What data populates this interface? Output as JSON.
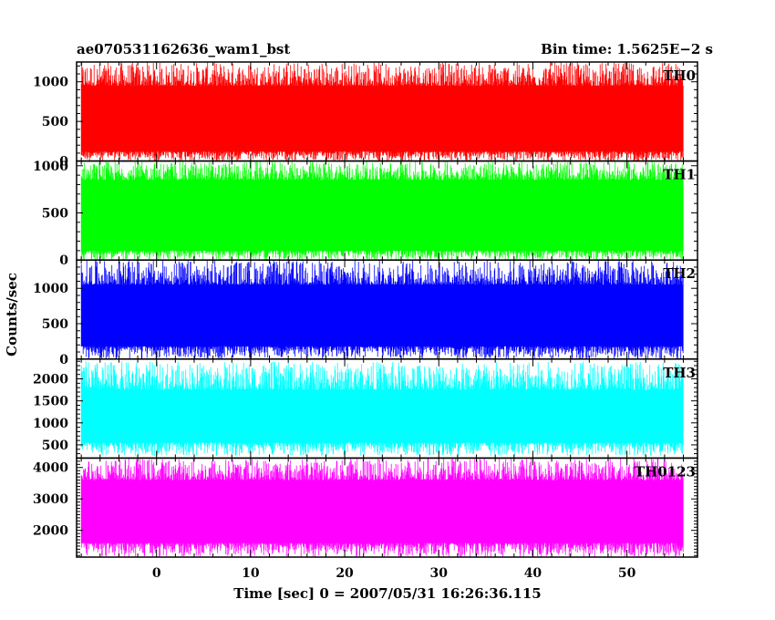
{
  "header": {
    "title": "ae070531162636_wam1_bst",
    "bin_time": "Bin time: 1.5625E−2 s"
  },
  "chart_data": {
    "type": "line",
    "title": "ae070531162636_wam1_bst",
    "subtitle": "Bin time: 1.5625E−2 s",
    "xlabel": "Time [sec] 0 = 2007/05/31 16:26:36.115",
    "ylabel": "Counts/sec",
    "xlim": [
      -8.5,
      57.5
    ],
    "x_range": [
      -8,
      56
    ],
    "x_ticks": [
      0,
      10,
      20,
      30,
      40,
      50
    ],
    "x_tick_labels": [
      "0",
      "10",
      "20",
      "30",
      "40",
      "50"
    ],
    "grid": false,
    "panels": [
      {
        "name": "TH0",
        "color": "#ff0000",
        "ylim": [
          0,
          1250
        ],
        "yticks": [
          0,
          500,
          1000
        ],
        "ytick_labels": [
          "0",
          "500",
          "1000"
        ],
        "low": 0,
        "base_low": 120,
        "base_high": 950,
        "high": 1250
      },
      {
        "name": "TH1",
        "color": "#00ff00",
        "ylim": [
          0,
          1050
        ],
        "yticks": [
          0,
          500,
          1000
        ],
        "ytick_labels": [
          "0",
          "500",
          "1000"
        ],
        "low": 0,
        "base_low": 100,
        "base_high": 850,
        "high": 1050
      },
      {
        "name": "TH2",
        "color": "#0000ff",
        "ylim": [
          0,
          1400
        ],
        "yticks": [
          0,
          500,
          1000
        ],
        "ytick_labels": [
          "0",
          "500",
          "1000"
        ],
        "low": 0,
        "base_low": 180,
        "base_high": 1050,
        "high": 1400
      },
      {
        "name": "TH3",
        "color": "#00ffff",
        "ylim": [
          200,
          2450
        ],
        "yticks": [
          500,
          1000,
          1500,
          2000
        ],
        "ytick_labels": [
          "500",
          "1000",
          "1500",
          "2000"
        ],
        "low": 250,
        "base_low": 550,
        "base_high": 1750,
        "high": 2400
      },
      {
        "name": "TH0123",
        "color": "#ff00ff",
        "ylim": [
          1150,
          4300
        ],
        "yticks": [
          2000,
          3000,
          4000
        ],
        "ytick_labels": [
          "2000",
          "3000",
          "4000"
        ],
        "low": 1150,
        "base_low": 1600,
        "base_high": 3600,
        "high": 4300
      }
    ]
  }
}
